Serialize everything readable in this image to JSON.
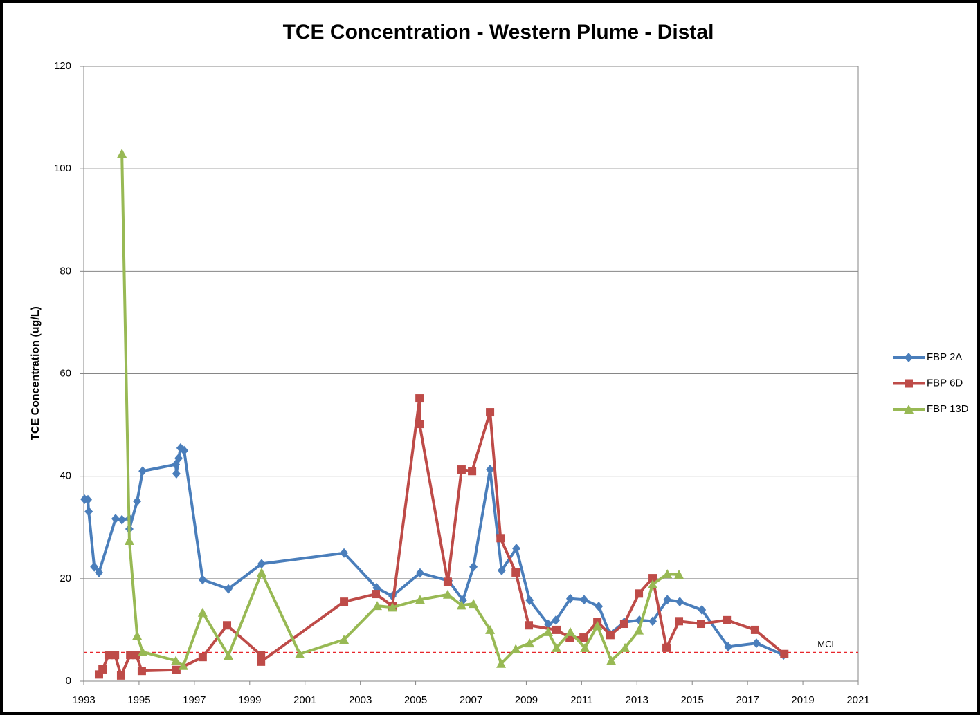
{
  "chart_data": {
    "type": "line",
    "title": "TCE Concentration - Western Plume - Distal",
    "y_label": "TCE Concentration (ug/L)",
    "xlim": [
      1993,
      2021
    ],
    "xticks": [
      1993,
      1995,
      1997,
      1999,
      2001,
      2003,
      2005,
      2007,
      2009,
      2011,
      2013,
      2015,
      2017,
      2019,
      2021
    ],
    "ylim": [
      0,
      120
    ],
    "yticks": [
      0,
      20,
      40,
      60,
      80,
      100,
      120
    ],
    "grid": true,
    "legend": "right",
    "mcl": {
      "value": 5.6,
      "label": "MCL",
      "color": "#e8262b"
    },
    "series": [
      {
        "name": "FBP  2A",
        "color": "#4a7ebb",
        "marker": "diamond",
        "x": [
          1993.03,
          1993.15,
          1993.18,
          1993.38,
          1993.55,
          1994.15,
          1994.38,
          1994.65,
          1994.65,
          1994.93,
          1995.13,
          1996.33,
          1996.35,
          1996.43,
          1996.5,
          1996.63,
          1997.3,
          1998.23,
          1999.43,
          2002.41,
          2003.59,
          2004.16,
          2005.16,
          2006.19,
          2006.71,
          2007.09,
          2007.69,
          2008.11,
          2008.64,
          2009.12,
          2009.79,
          2010.07,
          2010.59,
          2011.09,
          2011.62,
          2012.02,
          2012.54,
          2013.09,
          2013.57,
          2014.1,
          2014.55,
          2015.35,
          2016.3,
          2017.32,
          2018.3
        ],
        "values": [
          35.5,
          35.4,
          33.1,
          22.3,
          21.2,
          31.7,
          31.5,
          31.7,
          29.7,
          35.1,
          41.0,
          42.3,
          40.5,
          43.5,
          45.5,
          45.0,
          19.8,
          18.0,
          22.9,
          25.0,
          18.2,
          16.6,
          21.1,
          19.6,
          15.8,
          22.3,
          41.3,
          21.6,
          25.9,
          15.8,
          11.1,
          11.9,
          16.1,
          15.9,
          14.6,
          9.2,
          11.5,
          11.9,
          11.7,
          15.9,
          15.5,
          13.9,
          6.7,
          7.4,
          5.1
        ]
      },
      {
        "name": "FBP 6D",
        "color": "#be4b48",
        "marker": "square",
        "x": [
          1993.55,
          1993.68,
          1993.9,
          1994.13,
          1994.35,
          1994.68,
          1994.9,
          1995.1,
          1996.35,
          1997.3,
          1998.18,
          1999.41,
          1999.41,
          2002.41,
          2003.56,
          2004.16,
          2005.14,
          2005.14,
          2006.16,
          2006.66,
          2007.04,
          2007.69,
          2008.07,
          2008.62,
          2009.09,
          2010.09,
          2010.57,
          2011.07,
          2011.57,
          2012.04,
          2012.54,
          2013.07,
          2013.57,
          2014.07,
          2014.52,
          2015.32,
          2016.25,
          2017.27,
          2018.33
        ],
        "values": [
          1.3,
          2.3,
          5.1,
          5.1,
          1.1,
          5.1,
          5.1,
          2.0,
          2.2,
          4.7,
          10.9,
          5.1,
          3.8,
          15.5,
          17.0,
          14.7,
          55.2,
          50.2,
          19.4,
          41.3,
          41.0,
          52.5,
          27.9,
          21.2,
          10.9,
          10.0,
          8.5,
          8.5,
          11.6,
          9.0,
          11.2,
          17.1,
          20.1,
          6.5,
          11.7,
          11.2,
          11.9,
          10.0,
          5.3
        ]
      },
      {
        "name": "FBP 13D",
        "color": "#98b954",
        "marker": "triangle",
        "x": [
          1994.38,
          1994.65,
          1994.93,
          1995.13,
          1996.33,
          1996.6,
          1997.3,
          1998.23,
          1999.43,
          2000.81,
          2002.41,
          2003.61,
          2004.16,
          2005.16,
          2006.16,
          2006.66,
          2007.09,
          2007.69,
          2008.09,
          2008.62,
          2009.12,
          2009.79,
          2010.09,
          2010.59,
          2011.12,
          2011.57,
          2012.07,
          2012.57,
          2013.07,
          2013.57,
          2014.1,
          2014.52
        ],
        "values": [
          103.0,
          27.4,
          8.9,
          5.7,
          4.0,
          3.0,
          13.4,
          5.0,
          21.2,
          5.3,
          8.1,
          14.7,
          14.4,
          15.9,
          16.9,
          14.8,
          15.1,
          10.0,
          3.4,
          6.3,
          7.4,
          9.6,
          6.5,
          9.6,
          6.5,
          10.8,
          4.0,
          6.5,
          9.9,
          18.9,
          20.9,
          20.8
        ]
      }
    ]
  }
}
